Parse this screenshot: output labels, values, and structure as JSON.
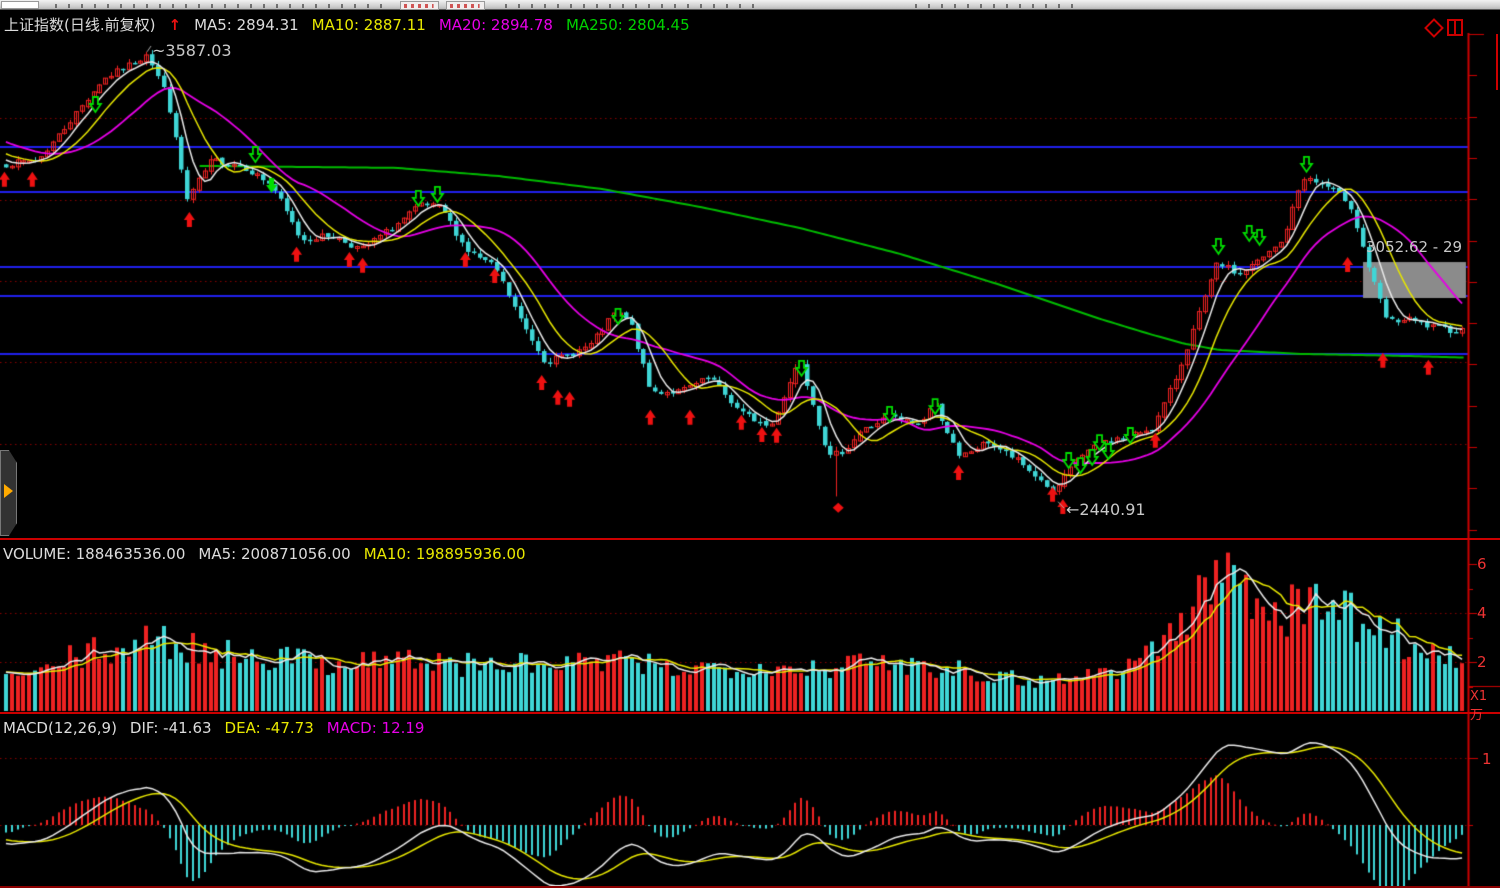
{
  "header": {
    "symbol": "上证指数(日线.前复权)",
    "arrow": "↑",
    "ma5": "MA5: 2894.31",
    "ma10": "MA10: 2887.11",
    "ma20": "MA20: 2894.78",
    "ma250": "MA250: 2804.45"
  },
  "annotations": {
    "peak_label": "~3587.03",
    "trough_label": "←2440.91",
    "gap_label": "3052.62 - 29"
  },
  "volume_header": {
    "volume": "VOLUME: 188463536.00",
    "ma5": "MA5: 200871056.00",
    "ma10": "MA10: 198895936.00"
  },
  "macd_header": {
    "title": "MACD(12,26,9)",
    "dif": "DIF: -41.63",
    "dea": "DEA: -47.73",
    "macd": "MACD: 12.19"
  },
  "right_axis": {
    "vol_t6": "6",
    "vol_t4": "4",
    "vol_t2": "2",
    "vol_unit": "X1万",
    "macd_t1": "1"
  },
  "colors": {
    "up": "#ee2222",
    "down": "#3fd6d6",
    "ma5": "#e8e8e8",
    "ma10": "#e6e600",
    "ma20": "#e600e6",
    "ma250": "#00bb00",
    "support": "#2020ee",
    "grid": "#8b0000",
    "axis": "#cc0000",
    "buy_arrow": "#ee1111",
    "sell_arrow": "#00dd00",
    "gap_box": "#8b8b8b",
    "annotation": "#c8c8c8"
  },
  "chart_data": [
    {
      "type": "candlestick",
      "title": "上证指数(日线.前复权)",
      "bars": 250,
      "y_range": [
        2348,
        3694
      ],
      "peak": {
        "frac": 0.0988,
        "price": 3587.03
      },
      "trough": {
        "frac": 0.7187,
        "price": 2440.91
      },
      "price_keypoints": [
        [
          0.0,
          3298
        ],
        [
          0.024,
          3310
        ],
        [
          0.041,
          3387
        ],
        [
          0.068,
          3515
        ],
        [
          0.099,
          3579
        ],
        [
          0.112,
          3477
        ],
        [
          0.126,
          3208
        ],
        [
          0.143,
          3310
        ],
        [
          0.163,
          3297
        ],
        [
          0.184,
          3246
        ],
        [
          0.204,
          3106
        ],
        [
          0.225,
          3118
        ],
        [
          0.245,
          3080
        ],
        [
          0.269,
          3144
        ],
        [
          0.286,
          3195
        ],
        [
          0.3,
          3187
        ],
        [
          0.317,
          3080
        ],
        [
          0.337,
          3034
        ],
        [
          0.354,
          2901
        ],
        [
          0.371,
          2794
        ],
        [
          0.388,
          2812
        ],
        [
          0.402,
          2837
        ],
        [
          0.419,
          2921
        ],
        [
          0.429,
          2896
        ],
        [
          0.443,
          2717
        ],
        [
          0.463,
          2717
        ],
        [
          0.484,
          2753
        ],
        [
          0.504,
          2666
        ],
        [
          0.525,
          2625
        ],
        [
          0.545,
          2804
        ],
        [
          0.565,
          2548
        ],
        [
          0.576,
          2568
        ],
        [
          0.586,
          2614
        ],
        [
          0.606,
          2653
        ],
        [
          0.627,
          2632
        ],
        [
          0.637,
          2691
        ],
        [
          0.654,
          2548
        ],
        [
          0.674,
          2589
        ],
        [
          0.695,
          2538
        ],
        [
          0.719,
          2461
        ],
        [
          0.736,
          2551
        ],
        [
          0.753,
          2589
        ],
        [
          0.77,
          2602
        ],
        [
          0.787,
          2627
        ],
        [
          0.804,
          2768
        ],
        [
          0.821,
          2947
        ],
        [
          0.831,
          3049
        ],
        [
          0.845,
          3016
        ],
        [
          0.862,
          3060
        ],
        [
          0.875,
          3101
        ],
        [
          0.889,
          3267
        ],
        [
          0.906,
          3241
        ],
        [
          0.921,
          3203
        ],
        [
          0.935,
          3024
        ],
        [
          0.947,
          2896
        ],
        [
          0.962,
          2901
        ],
        [
          0.975,
          2883
        ],
        [
          0.991,
          2875
        ]
      ],
      "force_close": [
        [
          0.0988,
          3579
        ],
        [
          0.7187,
          2461
        ]
      ],
      "wick_events": [
        [
          0.0988,
          3587.03,
          "h"
        ],
        [
          0.571,
          2449.2,
          "l"
        ],
        [
          0.7187,
          2440.91,
          "l"
        ]
      ],
      "ma250_keypoints": [
        [
          0.136,
          3295
        ],
        [
          0.27,
          3290
        ],
        [
          0.34,
          3269
        ],
        [
          0.41,
          3236
        ],
        [
          0.477,
          3190
        ],
        [
          0.545,
          3136
        ],
        [
          0.613,
          3070
        ],
        [
          0.681,
          2991
        ],
        [
          0.749,
          2904
        ],
        [
          0.783,
          2865
        ],
        [
          0.807,
          2840
        ],
        [
          0.831,
          2824
        ],
        [
          0.886,
          2814
        ],
        [
          0.954,
          2809
        ],
        [
          0.999,
          2804.45
        ]
      ],
      "support_levels": [
        3344,
        3228,
        3037,
        2961,
        2814
      ],
      "gridlines": [
        3417,
        3208,
        3000,
        2792,
        2584
      ],
      "gap_zone": {
        "frac_start": 0.9285,
        "frac_end": 0.9986,
        "price_top": 3049,
        "price_bottom": 2957
      },
      "buy_signals": [
        [
          0.003,
          3280
        ],
        [
          0.022,
          3280
        ],
        [
          0.129,
          3177
        ],
        [
          0.202,
          3088
        ],
        [
          0.238,
          3075
        ],
        [
          0.247,
          3060
        ],
        [
          0.317,
          3075
        ],
        [
          0.337,
          3034
        ],
        [
          0.369,
          2760
        ],
        [
          0.38,
          2722
        ],
        [
          0.388,
          2717
        ],
        [
          0.443,
          2671
        ],
        [
          0.47,
          2671
        ],
        [
          0.505,
          2658
        ],
        [
          0.519,
          2627
        ],
        [
          0.529,
          2625
        ],
        [
          0.653,
          2530
        ],
        [
          0.717,
          2474
        ],
        [
          0.724,
          2443
        ],
        [
          0.787,
          2612
        ],
        [
          0.918,
          3062
        ],
        [
          0.942,
          2817
        ],
        [
          0.973,
          2799
        ]
      ],
      "sell_signals": [
        [
          0.065,
          3433,
          0
        ],
        [
          0.174,
          3305,
          0
        ],
        [
          0.185,
          3226,
          1
        ],
        [
          0.285,
          3193,
          0
        ],
        [
          0.298,
          3203,
          0
        ],
        [
          0.421,
          2891,
          0
        ],
        [
          0.546,
          2758,
          0
        ],
        [
          0.606,
          2640,
          0
        ],
        [
          0.637,
          2660,
          0
        ],
        [
          0.728,
          2522,
          0
        ],
        [
          0.736,
          2509,
          0
        ],
        [
          0.744,
          2530,
          0
        ],
        [
          0.749,
          2568,
          0
        ],
        [
          0.755,
          2545,
          0
        ],
        [
          0.77,
          2586,
          0
        ],
        [
          0.83,
          3070,
          0
        ],
        [
          0.851,
          3103,
          0
        ],
        [
          0.858,
          3093,
          0
        ],
        [
          0.89,
          3280,
          0
        ]
      ],
      "diamond_signal": {
        "frac": 0.571,
        "price": 2420
      }
    },
    {
      "type": "bar",
      "label": "VOLUME",
      "current": 188463536.0,
      "ma5": 200871056.0,
      "ma10": 198895936.0,
      "y_range": [
        0,
        6.98
      ],
      "gridlines": [
        2,
        4
      ],
      "ticks": [
        1,
        2,
        3,
        4,
        5,
        6
      ],
      "tick_labels": [
        "6",
        "4",
        "2"
      ],
      "unit_multiplier": "X1万",
      "envelope_keypoints": [
        [
          0.0,
          1.5
        ],
        [
          0.02,
          1.4
        ],
        [
          0.045,
          2.1
        ],
        [
          0.07,
          2.5
        ],
        [
          0.09,
          2.7
        ],
        [
          0.11,
          2.8
        ],
        [
          0.13,
          2.6
        ],
        [
          0.15,
          2.3
        ],
        [
          0.17,
          2.4
        ],
        [
          0.19,
          2.2
        ],
        [
          0.21,
          2.05
        ],
        [
          0.23,
          2.0
        ],
        [
          0.25,
          2.1
        ],
        [
          0.27,
          2.15
        ],
        [
          0.29,
          2.0
        ],
        [
          0.31,
          1.9
        ],
        [
          0.33,
          1.85
        ],
        [
          0.35,
          1.95
        ],
        [
          0.37,
          1.8
        ],
        [
          0.39,
          1.9
        ],
        [
          0.41,
          2.05
        ],
        [
          0.43,
          1.9
        ],
        [
          0.45,
          1.8
        ],
        [
          0.47,
          1.75
        ],
        [
          0.49,
          1.8
        ],
        [
          0.51,
          1.9
        ],
        [
          0.53,
          1.8
        ],
        [
          0.55,
          1.75
        ],
        [
          0.57,
          1.85
        ],
        [
          0.59,
          1.9
        ],
        [
          0.61,
          2.0
        ],
        [
          0.63,
          1.9
        ],
        [
          0.65,
          1.8
        ],
        [
          0.67,
          1.55
        ],
        [
          0.69,
          1.35
        ],
        [
          0.71,
          1.25
        ],
        [
          0.73,
          1.4
        ],
        [
          0.75,
          1.55
        ],
        [
          0.77,
          1.9
        ],
        [
          0.785,
          2.5
        ],
        [
          0.8,
          3.3
        ],
        [
          0.81,
          3.9
        ],
        [
          0.82,
          4.6
        ],
        [
          0.828,
          5.6
        ],
        [
          0.835,
          5.9
        ],
        [
          0.845,
          5.4
        ],
        [
          0.855,
          4.9
        ],
        [
          0.865,
          4.5
        ],
        [
          0.875,
          4.2
        ],
        [
          0.885,
          4.1
        ],
        [
          0.895,
          4.5
        ],
        [
          0.905,
          4.7
        ],
        [
          0.915,
          4.1
        ],
        [
          0.925,
          3.8
        ],
        [
          0.935,
          3.6
        ],
        [
          0.945,
          3.3
        ],
        [
          0.955,
          3.0
        ],
        [
          0.965,
          2.7
        ],
        [
          0.975,
          2.4
        ],
        [
          0.985,
          2.25
        ],
        [
          1.0,
          2.1
        ]
      ]
    },
    {
      "type": "macd",
      "params": "12,26,9",
      "dif": -41.63,
      "dea": -47.73,
      "macd": 12.19,
      "gridline_value": 100,
      "y_range_units": [
        -94,
        166
      ]
    }
  ]
}
